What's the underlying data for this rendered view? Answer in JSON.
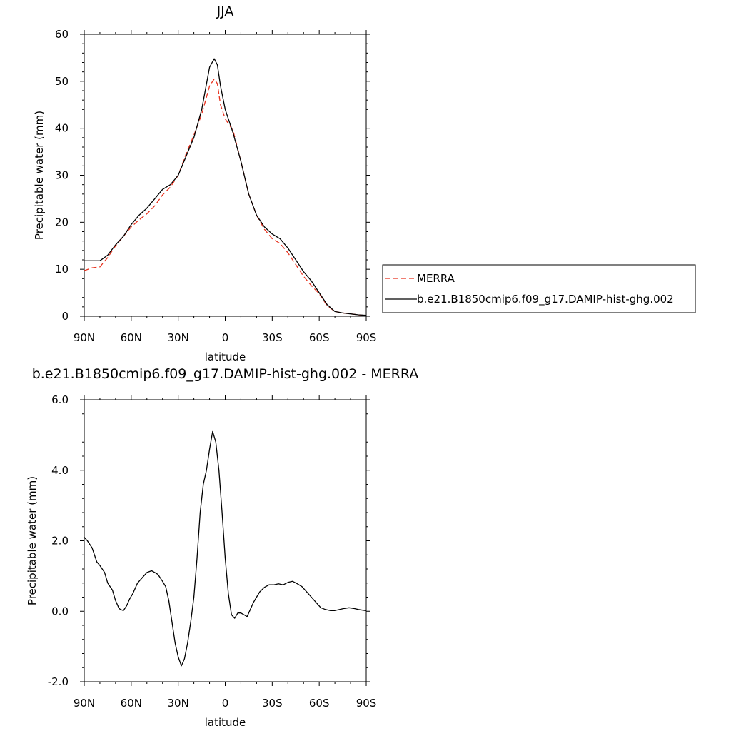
{
  "chart_data": [
    {
      "type": "line",
      "title": "JJA",
      "xlabel": "latitude",
      "ylabel": "Precipitable water (mm)",
      "xlim": [
        90,
        -90
      ],
      "ylim": [
        0,
        60
      ],
      "x_ticks": [
        90,
        60,
        30,
        0,
        -30,
        -60,
        -90
      ],
      "x_tick_labels": [
        "90N",
        "60N",
        "30N",
        "0",
        "30S",
        "60S",
        "90S"
      ],
      "y_ticks": [
        0,
        10,
        20,
        30,
        40,
        50,
        60
      ],
      "y_tick_labels": [
        "0",
        "10",
        "20",
        "30",
        "40",
        "50",
        "60"
      ],
      "grid": false,
      "legend": {
        "placement": "right",
        "entries": [
          "MERRA",
          "b.e21.B1850cmip6.f09_g17.DAMIP-hist-ghg.002"
        ]
      },
      "series": [
        {
          "name": "MERRA",
          "color": "#e8321e",
          "dash": "dashed",
          "x": [
            90,
            85,
            80,
            75,
            70,
            65,
            60,
            55,
            50,
            45,
            40,
            35,
            30,
            25,
            20,
            15,
            10,
            7,
            5,
            3,
            0,
            -5,
            -10,
            -15,
            -20,
            -25,
            -30,
            -35,
            -40,
            -45,
            -50,
            -55,
            -60,
            -65,
            -70,
            -75,
            -80,
            -85,
            -90
          ],
          "values": [
            9.7,
            10.3,
            10.5,
            12.5,
            15.0,
            17.0,
            19.0,
            20.5,
            21.8,
            23.5,
            25.8,
            27.5,
            30.0,
            34.5,
            38.5,
            43.0,
            49.0,
            50.5,
            49.5,
            45.0,
            42.0,
            39.5,
            33.0,
            26.0,
            21.5,
            18.5,
            16.5,
            15.5,
            13.5,
            11.0,
            8.5,
            6.5,
            4.8,
            2.3,
            1.0,
            0.7,
            0.5,
            0.3,
            0.1
          ]
        },
        {
          "name": "b.e21.B1850cmip6.f09_g17.DAMIP-hist-ghg.002",
          "color": "#000000",
          "dash": "solid",
          "x": [
            90,
            85,
            80,
            75,
            70,
            65,
            60,
            55,
            50,
            45,
            40,
            35,
            30,
            25,
            20,
            15,
            10,
            7,
            5,
            3,
            0,
            -5,
            -10,
            -15,
            -20,
            -25,
            -30,
            -35,
            -40,
            -45,
            -50,
            -55,
            -60,
            -65,
            -70,
            -75,
            -80,
            -85,
            -90
          ],
          "values": [
            11.8,
            11.8,
            11.8,
            13.0,
            15.2,
            17.0,
            19.5,
            21.5,
            23.0,
            25.0,
            27.0,
            28.0,
            30.0,
            34.0,
            38.0,
            44.0,
            53.0,
            54.8,
            53.5,
            49.0,
            44.0,
            39.0,
            33.0,
            26.0,
            21.5,
            19.0,
            17.5,
            16.5,
            14.5,
            12.0,
            9.5,
            7.5,
            5.0,
            2.5,
            1.0,
            0.7,
            0.5,
            0.3,
            0.2
          ]
        }
      ]
    },
    {
      "type": "line",
      "title": "b.e21.B1850cmip6.f09_g17.DAMIP-hist-ghg.002 - MERRA",
      "xlabel": "latitude",
      "ylabel": "Precipitable water (mm)",
      "xlim": [
        90,
        -90
      ],
      "ylim": [
        -2,
        6
      ],
      "x_ticks": [
        90,
        60,
        30,
        0,
        -30,
        -60,
        -90
      ],
      "x_tick_labels": [
        "90N",
        "60N",
        "30N",
        "0",
        "30S",
        "60S",
        "90S"
      ],
      "y_ticks": [
        -2,
        0,
        2,
        4,
        6
      ],
      "y_tick_labels": [
        "-2.0",
        "0.0",
        "2.0",
        "4.0",
        "6.0"
      ],
      "grid": false,
      "series": [
        {
          "color": "#000000",
          "x": [
            90,
            88,
            85,
            82,
            80,
            77,
            75,
            72,
            70,
            68,
            67,
            65,
            63,
            61,
            59,
            56,
            53,
            50,
            47,
            45,
            43,
            40,
            38,
            36,
            34,
            32,
            30,
            28,
            26,
            24,
            22,
            20,
            18,
            16,
            14,
            12,
            10,
            8,
            6,
            4,
            2,
            0,
            -2,
            -4,
            -6,
            -8,
            -10,
            -12,
            -14,
            -16,
            -18,
            -20,
            -22,
            -25,
            -28,
            -31,
            -34,
            -37,
            -40,
            -43,
            -46,
            -49,
            -52,
            -55,
            -58,
            -61,
            -64,
            -67,
            -70,
            -73,
            -76,
            -79,
            -82,
            -85,
            -88,
            -90
          ],
          "values": [
            2.1,
            2.0,
            1.8,
            1.4,
            1.3,
            1.1,
            0.8,
            0.6,
            0.3,
            0.1,
            0.05,
            0.02,
            0.15,
            0.35,
            0.5,
            0.8,
            0.95,
            1.1,
            1.15,
            1.1,
            1.05,
            0.85,
            0.7,
            0.3,
            -0.3,
            -0.9,
            -1.3,
            -1.55,
            -1.35,
            -0.9,
            -0.3,
            0.4,
            1.5,
            2.8,
            3.6,
            4.0,
            4.6,
            5.1,
            4.8,
            4.0,
            2.8,
            1.5,
            0.5,
            -0.1,
            -0.2,
            -0.05,
            -0.05,
            -0.1,
            -0.15,
            0.05,
            0.25,
            0.4,
            0.55,
            0.68,
            0.75,
            0.75,
            0.78,
            0.75,
            0.82,
            0.85,
            0.78,
            0.7,
            0.55,
            0.4,
            0.25,
            0.1,
            0.05,
            0.02,
            0.02,
            0.05,
            0.08,
            0.1,
            0.08,
            0.05,
            0.03,
            0.02
          ]
        }
      ]
    }
  ]
}
